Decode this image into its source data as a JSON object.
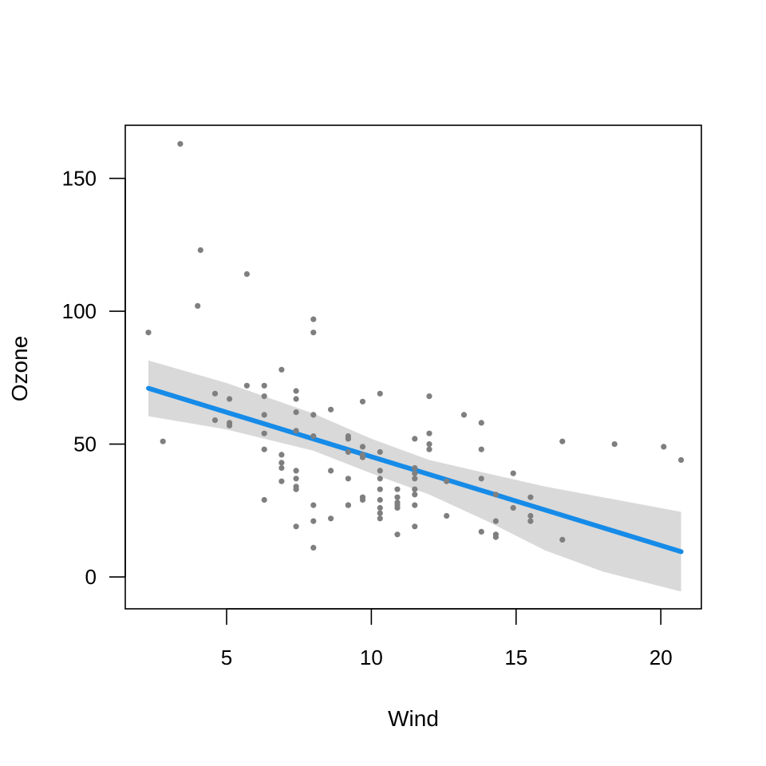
{
  "chart_data": {
    "type": "scatter",
    "xlabel": "Wind",
    "ylabel": "Ozone",
    "xlim": [
      1.5,
      21.4
    ],
    "ylim": [
      -12,
      170
    ],
    "x_ticks": [
      5,
      10,
      15,
      20
    ],
    "y_ticks": [
      0,
      50,
      100,
      150
    ],
    "colors": {
      "points": "#7f7f7f",
      "fit_line": "#168be8",
      "confidence_band": "#d9d9d9"
    },
    "points": [
      {
        "x": 2.3,
        "y": 92
      },
      {
        "x": 2.8,
        "y": 51
      },
      {
        "x": 3.4,
        "y": 163
      },
      {
        "x": 4.0,
        "y": 102
      },
      {
        "x": 4.1,
        "y": 123
      },
      {
        "x": 4.6,
        "y": 69
      },
      {
        "x": 4.6,
        "y": 59
      },
      {
        "x": 5.1,
        "y": 67
      },
      {
        "x": 5.1,
        "y": 58
      },
      {
        "x": 5.1,
        "y": 57
      },
      {
        "x": 5.7,
        "y": 114
      },
      {
        "x": 5.7,
        "y": 72
      },
      {
        "x": 6.3,
        "y": 72
      },
      {
        "x": 6.3,
        "y": 68
      },
      {
        "x": 6.3,
        "y": 61
      },
      {
        "x": 6.3,
        "y": 54
      },
      {
        "x": 6.3,
        "y": 48
      },
      {
        "x": 6.3,
        "y": 29
      },
      {
        "x": 6.9,
        "y": 78
      },
      {
        "x": 6.9,
        "y": 46
      },
      {
        "x": 6.9,
        "y": 43
      },
      {
        "x": 6.9,
        "y": 41
      },
      {
        "x": 6.9,
        "y": 36
      },
      {
        "x": 7.4,
        "y": 70
      },
      {
        "x": 7.4,
        "y": 67
      },
      {
        "x": 7.4,
        "y": 62
      },
      {
        "x": 7.4,
        "y": 55
      },
      {
        "x": 7.4,
        "y": 40
      },
      {
        "x": 7.4,
        "y": 37
      },
      {
        "x": 7.4,
        "y": 34
      },
      {
        "x": 7.4,
        "y": 33
      },
      {
        "x": 7.4,
        "y": 19
      },
      {
        "x": 8.0,
        "y": 97
      },
      {
        "x": 8.0,
        "y": 92
      },
      {
        "x": 8.0,
        "y": 61
      },
      {
        "x": 8.0,
        "y": 53
      },
      {
        "x": 8.0,
        "y": 27
      },
      {
        "x": 8.0,
        "y": 21
      },
      {
        "x": 8.0,
        "y": 11
      },
      {
        "x": 8.6,
        "y": 63
      },
      {
        "x": 8.6,
        "y": 40
      },
      {
        "x": 8.6,
        "y": 22
      },
      {
        "x": 9.2,
        "y": 53
      },
      {
        "x": 9.2,
        "y": 52
      },
      {
        "x": 9.2,
        "y": 47
      },
      {
        "x": 9.2,
        "y": 37
      },
      {
        "x": 9.2,
        "y": 27
      },
      {
        "x": 9.2,
        "y": 27
      },
      {
        "x": 9.7,
        "y": 66
      },
      {
        "x": 9.7,
        "y": 49
      },
      {
        "x": 9.7,
        "y": 46
      },
      {
        "x": 9.7,
        "y": 45
      },
      {
        "x": 9.7,
        "y": 30
      },
      {
        "x": 9.7,
        "y": 29
      },
      {
        "x": 10.3,
        "y": 69
      },
      {
        "x": 10.3,
        "y": 47
      },
      {
        "x": 10.3,
        "y": 40
      },
      {
        "x": 10.3,
        "y": 37
      },
      {
        "x": 10.3,
        "y": 33
      },
      {
        "x": 10.3,
        "y": 29
      },
      {
        "x": 10.3,
        "y": 26
      },
      {
        "x": 10.3,
        "y": 24
      },
      {
        "x": 10.3,
        "y": 22
      },
      {
        "x": 10.9,
        "y": 33
      },
      {
        "x": 10.9,
        "y": 30
      },
      {
        "x": 10.9,
        "y": 28
      },
      {
        "x": 10.9,
        "y": 27
      },
      {
        "x": 10.9,
        "y": 26
      },
      {
        "x": 10.9,
        "y": 16
      },
      {
        "x": 11.5,
        "y": 52
      },
      {
        "x": 11.5,
        "y": 41
      },
      {
        "x": 11.5,
        "y": 39
      },
      {
        "x": 11.5,
        "y": 37
      },
      {
        "x": 11.5,
        "y": 33
      },
      {
        "x": 11.5,
        "y": 31
      },
      {
        "x": 11.5,
        "y": 27
      },
      {
        "x": 11.5,
        "y": 19
      },
      {
        "x": 12.0,
        "y": 68
      },
      {
        "x": 12.0,
        "y": 54
      },
      {
        "x": 12.0,
        "y": 50
      },
      {
        "x": 12.0,
        "y": 48
      },
      {
        "x": 12.6,
        "y": 36
      },
      {
        "x": 12.6,
        "y": 23
      },
      {
        "x": 13.2,
        "y": 61
      },
      {
        "x": 13.8,
        "y": 58
      },
      {
        "x": 13.8,
        "y": 48
      },
      {
        "x": 13.8,
        "y": 37
      },
      {
        "x": 13.8,
        "y": 17
      },
      {
        "x": 14.3,
        "y": 31
      },
      {
        "x": 14.3,
        "y": 21
      },
      {
        "x": 14.3,
        "y": 16
      },
      {
        "x": 14.3,
        "y": 15
      },
      {
        "x": 14.9,
        "y": 39
      },
      {
        "x": 14.9,
        "y": 26
      },
      {
        "x": 15.5,
        "y": 30
      },
      {
        "x": 15.5,
        "y": 23
      },
      {
        "x": 15.5,
        "y": 21
      },
      {
        "x": 16.6,
        "y": 51
      },
      {
        "x": 16.6,
        "y": 14
      },
      {
        "x": 18.4,
        "y": 50
      },
      {
        "x": 20.1,
        "y": 49
      },
      {
        "x": 20.7,
        "y": 44
      }
    ],
    "fit": {
      "x_range": [
        2.3,
        20.7
      ],
      "line": [
        [
          2.3,
          71.0
        ],
        [
          20.7,
          9.5
        ]
      ],
      "band_upper": [
        [
          2.3,
          81.5
        ],
        [
          5.0,
          73.0
        ],
        [
          8.0,
          61.5
        ],
        [
          10.0,
          52.0
        ],
        [
          12.0,
          44.0
        ],
        [
          14.0,
          39.0
        ],
        [
          16.0,
          34.0
        ],
        [
          18.0,
          30.0
        ],
        [
          20.7,
          24.5
        ]
      ],
      "band_lower": [
        [
          2.3,
          60.5
        ],
        [
          5.0,
          55.5
        ],
        [
          8.0,
          47.5
        ],
        [
          10.0,
          39.0
        ],
        [
          12.0,
          31.0
        ],
        [
          14.0,
          21.0
        ],
        [
          16.0,
          10.0
        ],
        [
          18.0,
          2.0
        ],
        [
          20.7,
          -5.5
        ]
      ]
    }
  }
}
